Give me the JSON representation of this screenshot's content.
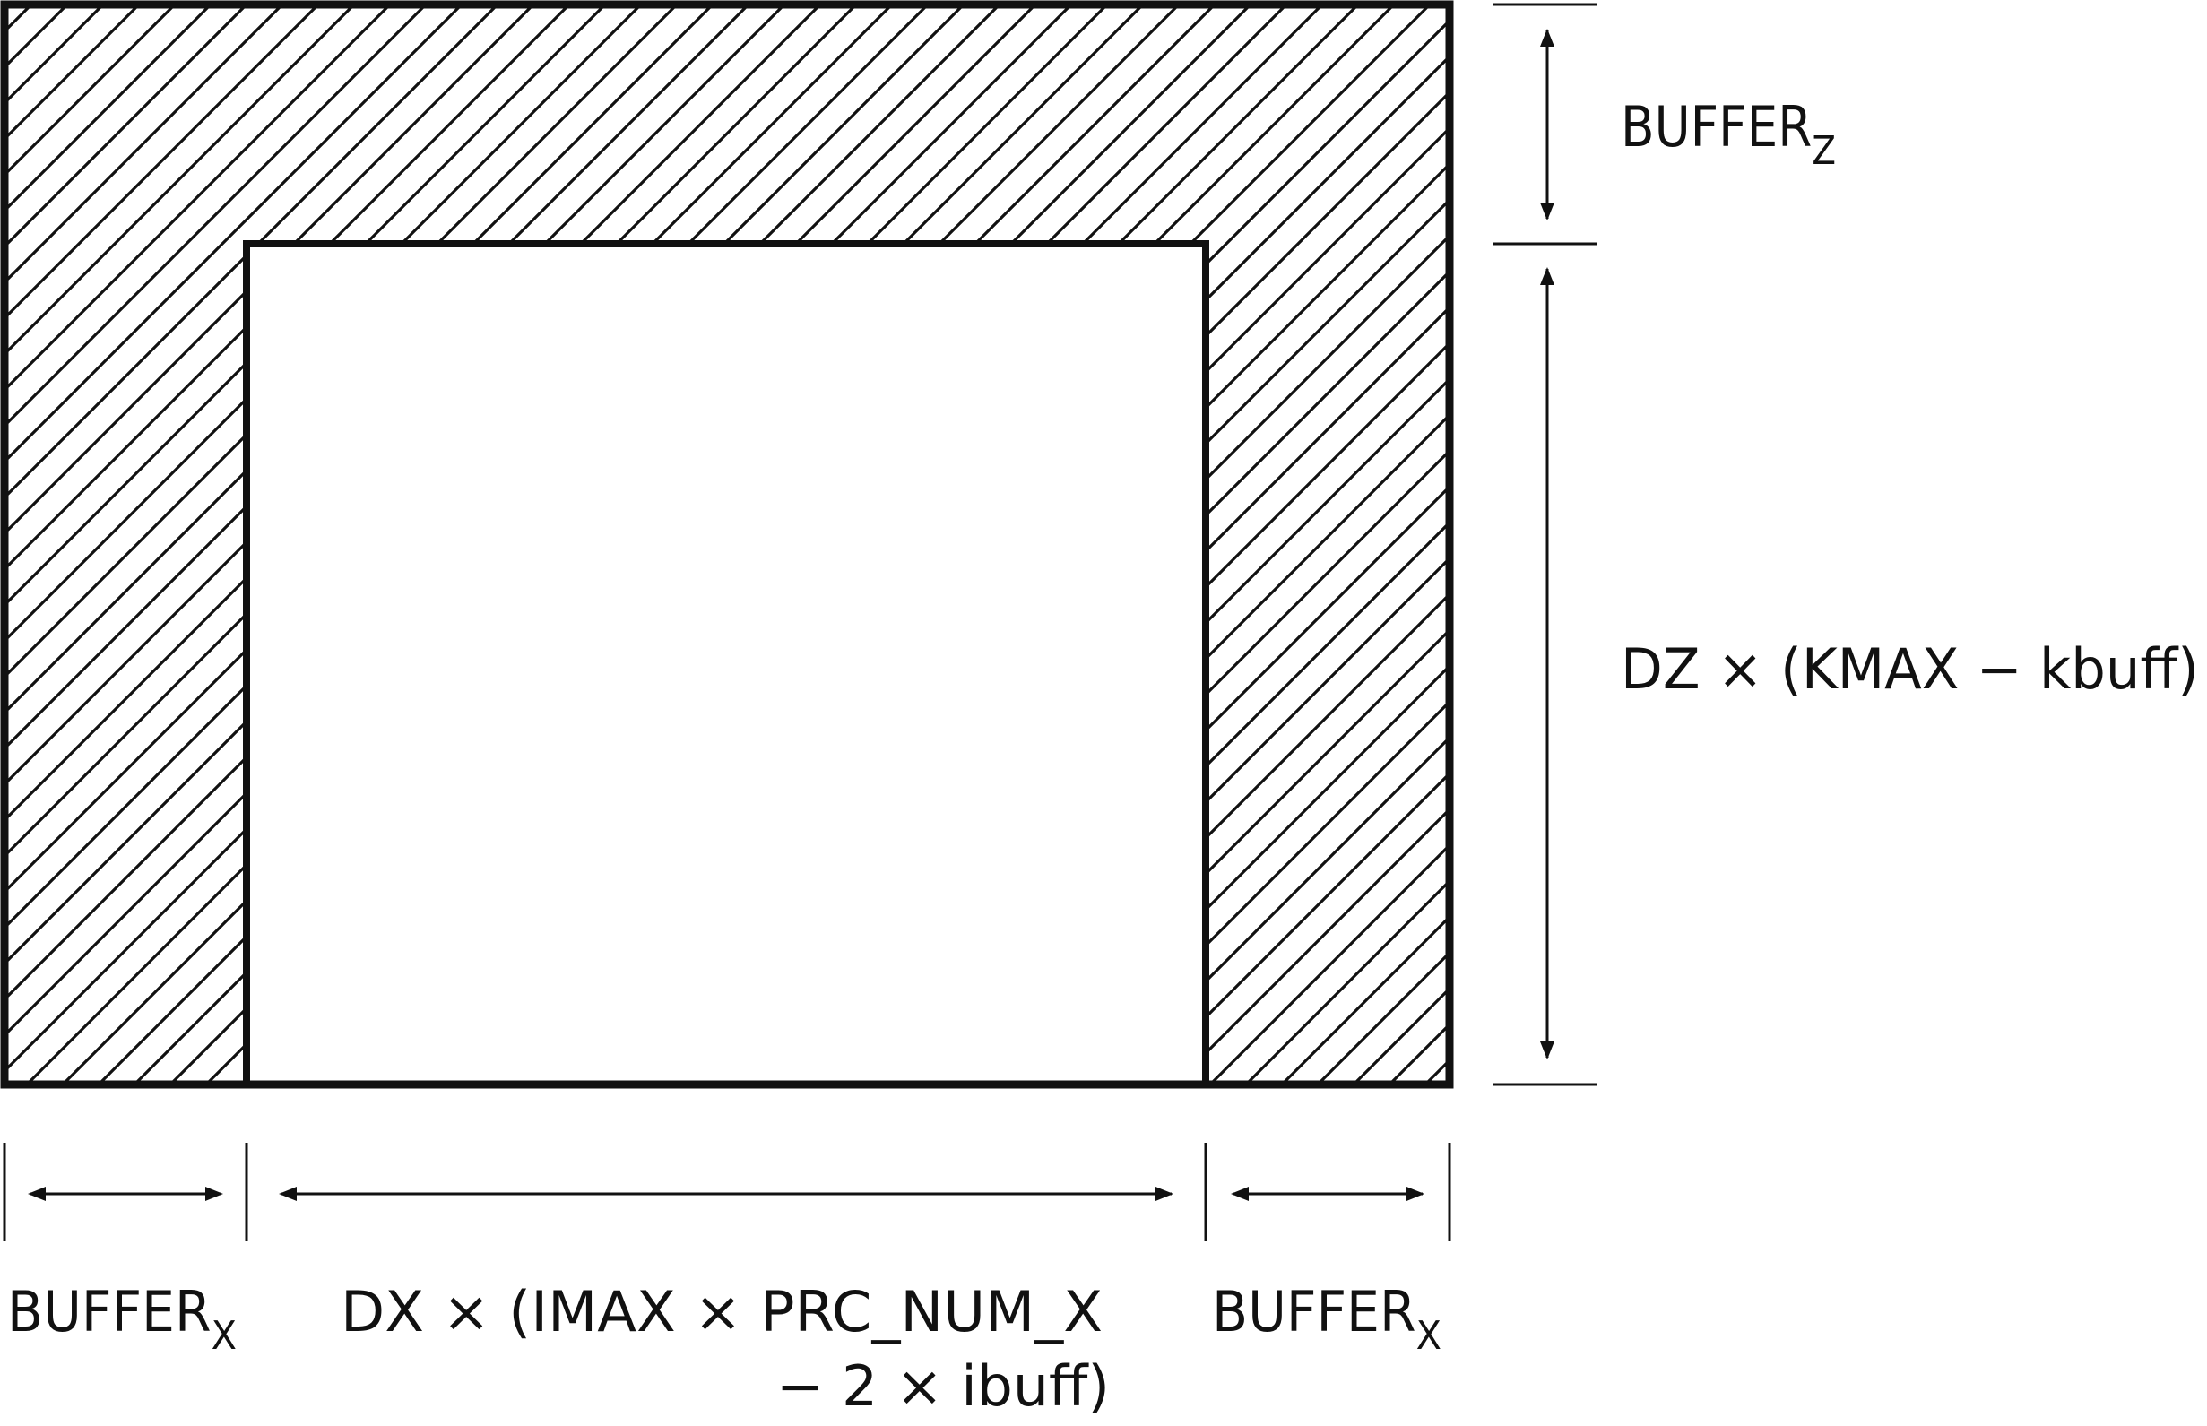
{
  "diagram": {
    "colors": {
      "stroke": "#111111",
      "hatch": "#111111",
      "background": "#ffffff"
    },
    "labels": {
      "buffer_z": {
        "main": "BUFFER",
        "sub": "Z"
      },
      "dz_height": "DZ × (KMAX − kbuff)",
      "buffer_x_left": {
        "main": "BUFFER",
        "sub": "X"
      },
      "dx_width_line1": "DX × (IMAX × PRC_NUM_X",
      "dx_width_line2": "− 2 × ibuff)",
      "buffer_x_right": {
        "main": "BUFFER",
        "sub": "X"
      }
    }
  }
}
